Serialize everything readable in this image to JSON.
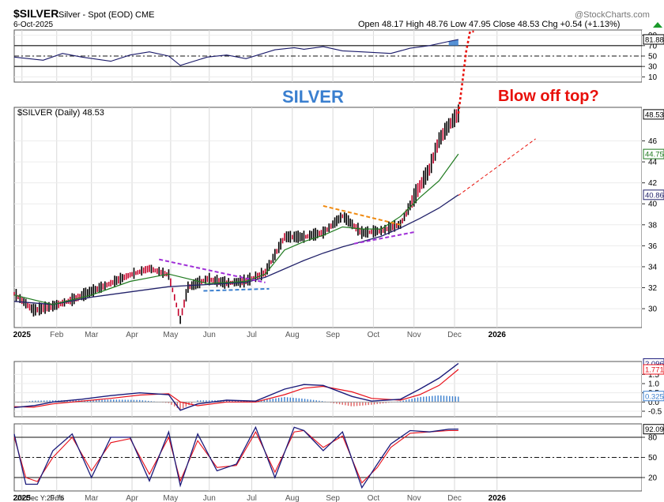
{
  "header": {
    "symbol": "$SILVER",
    "subtitle": "Silver - Spot (EOD)",
    "exchange": "CME",
    "date": "6-Oct-2025",
    "brand": "@StockCharts.com",
    "ohlc": "Open 48.17  High 48.76  Low 47.95  Close 48.53  Chg +0.54 (+1.13%)",
    "ohlc_direction_arrow": "up-arrow-icon"
  },
  "annotations": {
    "title_big": "SILVER",
    "blow_off": "Blow off top?",
    "legend": "$SILVER (Daily) 48.53",
    "cursor": "29 Dec Y:29.76"
  },
  "colors": {
    "price_bar": "#000000",
    "price_up_accent": "#c4002a",
    "ma_short": "#1f7a1f",
    "ma_long": "#22226a",
    "macd_line": "#1a1a7a",
    "macd_signal": "#e8101a",
    "macd_hist_pos": "#3a7fcf",
    "macd_hist_neg": "#e06060",
    "rsi_line": "#1a1a6a",
    "rsi_fill": "#3a7fcf",
    "stoch_k": "#1a1a7a",
    "stoch_d": "#e8101a",
    "purple_trend": "#a030d8",
    "orange_trend": "#f08a10",
    "blue_dash": "#3a7fcf",
    "red_projection": "#e8100a",
    "label_green": "#1f7a1f",
    "label_navy": "#22226a"
  },
  "x_axis": {
    "months": [
      "2025",
      "Feb",
      "Mar",
      "Apr",
      "May",
      "Jun",
      "Jul",
      "Aug",
      "Sep",
      "Oct",
      "Nov",
      "Dec",
      "2026"
    ],
    "year_labels": [
      "2025",
      "2026"
    ]
  },
  "rsi_panel": {
    "ticks": [
      "90",
      "70",
      "50",
      "30",
      "10"
    ],
    "value_label": "81.88"
  },
  "price_panel": {
    "ticks": [
      "46",
      "44",
      "42",
      "40",
      "38",
      "36",
      "34",
      "32",
      "30"
    ],
    "labels": [
      {
        "text": "48.53",
        "color_key": "price_bar"
      },
      {
        "text": "44.75",
        "color_key": "label_green"
      },
      {
        "text": "40.86",
        "color_key": "label_navy"
      }
    ]
  },
  "macd_panel": {
    "ticks": [
      "1.5",
      "1.0",
      "0.5",
      "0.0",
      "-0.5"
    ],
    "labels": [
      {
        "text": "2.096",
        "color_key": "macd_line"
      },
      {
        "text": "1.771",
        "color_key": "macd_signal"
      },
      {
        "text": "0.325",
        "color_key": "macd_hist_pos"
      }
    ]
  },
  "stoch_panel": {
    "ticks": [
      "80",
      "50",
      "20"
    ],
    "value_label": "92.09"
  },
  "chart_data": {
    "type": "line",
    "title": "$SILVER",
    "panels": [
      {
        "name": "rsi",
        "ylim": [
          0,
          100
        ],
        "reference_lines": [
          70,
          50,
          30
        ],
        "series": [
          {
            "x": [
              0,
              15,
              25,
              35,
              50,
              60,
              70,
              80,
              86,
              100,
              110,
              120,
              135,
              145,
              150,
              160,
              170,
              180,
              195,
              205,
              215,
              225,
              230
            ],
            "values": [
              48,
              42,
              55,
              48,
              40,
              52,
              58,
              50,
              32,
              48,
              52,
              45,
              62,
              66,
              63,
              68,
              60,
              58,
              55,
              65,
              70,
              78,
              81.88
            ]
          }
        ]
      },
      {
        "name": "price",
        "ylim": [
          28.2,
          49.2
        ],
        "series": [
          {
            "x": [
              0,
              10,
              20,
              30,
              40,
              50,
              60,
              70,
              80,
              86,
              90,
              100,
              110,
              120,
              130,
              140,
              150,
              160,
              170,
              180,
              190,
              200,
              210,
              215,
              220,
              225,
              230
            ],
            "values": [
              31.4,
              29.8,
              30.2,
              30.8,
              31.6,
              32.4,
              33.2,
              33.8,
              33.2,
              28.9,
              32.0,
              32.8,
              32.4,
              32.6,
              33.4,
              36.8,
              36.8,
              37.2,
              38.8,
              37.2,
              37.4,
              38.0,
              41.6,
              43.2,
              46.0,
              47.4,
              48.53
            ]
          },
          {
            "x": [
              0,
              20,
              40,
              60,
              80,
              100,
              120,
              130,
              140,
              150,
              160,
              170,
              180,
              190,
              200,
              210,
              220,
              230
            ],
            "values": [
              31.3,
              30.4,
              31.3,
              32.6,
              33.3,
              32.4,
              32.6,
              33.3,
              35.6,
              36.4,
              37.0,
              37.8,
              37.6,
              37.6,
              38.8,
              40.6,
              42.2,
              44.75
            ]
          },
          {
            "x": [
              0,
              20,
              40,
              60,
              80,
              100,
              120,
              130,
              140,
              150,
              160,
              170,
              180,
              190,
              200,
              210,
              220,
              230
            ],
            "values": [
              30.7,
              30.4,
              31.1,
              31.6,
              32.1,
              32.3,
              32.5,
              33.0,
              33.8,
              34.6,
              35.3,
              35.9,
              36.4,
              36.9,
              37.7,
              38.6,
              39.6,
              40.86
            ]
          }
        ]
      },
      {
        "name": "macd",
        "ylim": [
          -0.8,
          2.2
        ],
        "series": [
          {
            "x": [
              0,
              10,
              20,
              35,
              50,
              65,
              80,
              86,
              95,
              110,
              125,
              140,
              150,
              160,
              175,
              185,
              200,
              210,
              220,
              230
            ],
            "values": [
              -0.3,
              -0.2,
              0.0,
              0.15,
              0.35,
              0.5,
              0.4,
              -0.45,
              -0.1,
              0.1,
              0.05,
              0.7,
              0.95,
              0.9,
              0.3,
              0.05,
              0.15,
              0.7,
              1.3,
              2.096
            ]
          },
          {
            "x": [
              0,
              10,
              20,
              35,
              50,
              65,
              80,
              86,
              95,
              110,
              125,
              140,
              150,
              160,
              175,
              185,
              200,
              210,
              220,
              230
            ],
            "values": [
              -0.25,
              -0.28,
              -0.1,
              0.05,
              0.2,
              0.38,
              0.45,
              0.0,
              -0.2,
              0.0,
              0.0,
              0.4,
              0.75,
              0.85,
              0.55,
              0.2,
              0.1,
              0.4,
              0.9,
              1.771
            ]
          }
        ]
      },
      {
        "name": "stochastic",
        "ylim": [
          0,
          100
        ],
        "reference_lines": [
          80,
          50,
          20
        ],
        "series": [
          {
            "x": [
              0,
              6,
              12,
              20,
              30,
              40,
              50,
              60,
              70,
              80,
              86,
              95,
              105,
              115,
              125,
              135,
              145,
              150,
              160,
              170,
              180,
              188,
              195,
              205,
              215,
              225,
              230
            ],
            "values": [
              85,
              10,
              10,
              60,
              85,
              20,
              80,
              80,
              15,
              88,
              8,
              85,
              30,
              40,
              95,
              20,
              95,
              90,
              60,
              88,
              5,
              40,
              70,
              90,
              88,
              92,
              92.09
            ]
          },
          {
            "x": [
              0,
              6,
              12,
              20,
              30,
              40,
              50,
              60,
              70,
              80,
              86,
              95,
              105,
              115,
              125,
              135,
              145,
              150,
              160,
              170,
              180,
              188,
              195,
              205,
              215,
              225,
              230
            ],
            "values": [
              80,
              20,
              14,
              50,
              80,
              30,
              72,
              78,
              25,
              80,
              15,
              75,
              35,
              38,
              88,
              28,
              88,
              90,
              65,
              82,
              12,
              35,
              65,
              86,
              88,
              90,
              90
            ]
          }
        ]
      }
    ]
  }
}
